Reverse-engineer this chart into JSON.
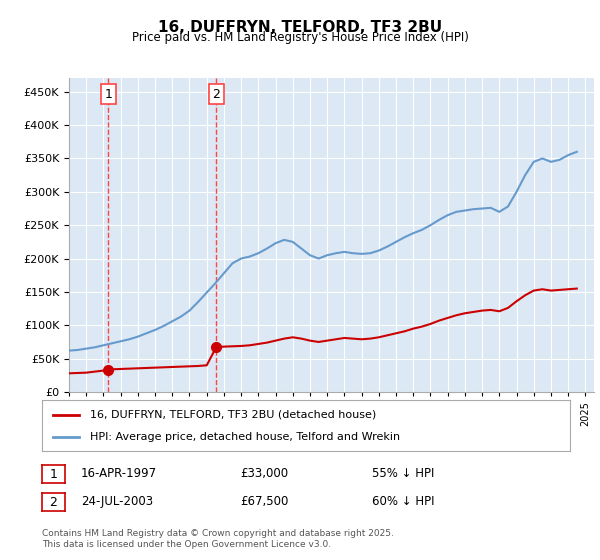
{
  "title": "16, DUFFRYN, TELFORD, TF3 2BU",
  "subtitle": "Price paid vs. HM Land Registry's House Price Index (HPI)",
  "legend_line1": "16, DUFFRYN, TELFORD, TF3 2BU (detached house)",
  "legend_line2": "HPI: Average price, detached house, Telford and Wrekin",
  "transaction1_label": "1",
  "transaction1_date": "16-APR-1997",
  "transaction1_price": "£33,000",
  "transaction1_hpi": "55% ↓ HPI",
  "transaction1_year": 1997.29,
  "transaction1_value": 33000,
  "transaction2_label": "2",
  "transaction2_date": "24-JUL-2003",
  "transaction2_price": "£67,500",
  "transaction2_hpi": "60% ↓ HPI",
  "transaction2_year": 2003.56,
  "transaction2_value": 67500,
  "footer": "Contains HM Land Registry data © Crown copyright and database right 2025.\nThis data is licensed under the Open Government Licence v3.0.",
  "hpi_color": "#6699cc",
  "price_color": "#cc0000",
  "marker_color": "#cc0000",
  "vline_color": "#ff4444",
  "background_color": "#ffffff",
  "plot_bg_color": "#dce9f5",
  "ylim": [
    0,
    470000
  ],
  "yticks": [
    0,
    50000,
    100000,
    150000,
    200000,
    250000,
    300000,
    350000,
    400000,
    450000
  ],
  "hpi_data": {
    "years": [
      1995.0,
      1995.5,
      1996.0,
      1996.5,
      1997.0,
      1997.5,
      1998.0,
      1998.5,
      1999.0,
      1999.5,
      2000.0,
      2000.5,
      2001.0,
      2001.5,
      2002.0,
      2002.5,
      2003.0,
      2003.5,
      2004.0,
      2004.5,
      2005.0,
      2005.5,
      2006.0,
      2006.5,
      2007.0,
      2007.5,
      2008.0,
      2008.5,
      2009.0,
      2009.5,
      2010.0,
      2010.5,
      2011.0,
      2011.5,
      2012.0,
      2012.5,
      2013.0,
      2013.5,
      2014.0,
      2014.5,
      2015.0,
      2015.5,
      2016.0,
      2016.5,
      2017.0,
      2017.5,
      2018.0,
      2018.5,
      2019.0,
      2019.5,
      2020.0,
      2020.5,
      2021.0,
      2021.5,
      2022.0,
      2022.5,
      2023.0,
      2023.5,
      2024.0,
      2024.5
    ],
    "values": [
      62000,
      63000,
      65000,
      67000,
      70000,
      73000,
      76000,
      79000,
      83000,
      88000,
      93000,
      99000,
      106000,
      113000,
      122000,
      135000,
      149000,
      163000,
      178000,
      193000,
      200000,
      203000,
      208000,
      215000,
      223000,
      228000,
      225000,
      215000,
      205000,
      200000,
      205000,
      208000,
      210000,
      208000,
      207000,
      208000,
      212000,
      218000,
      225000,
      232000,
      238000,
      243000,
      250000,
      258000,
      265000,
      270000,
      272000,
      274000,
      275000,
      276000,
      270000,
      278000,
      300000,
      325000,
      345000,
      350000,
      345000,
      348000,
      355000,
      360000
    ]
  },
  "price_data": {
    "years": [
      1995.0,
      1996.0,
      1997.29,
      1997.5,
      1998.0,
      1998.5,
      1999.0,
      1999.5,
      2000.0,
      2000.5,
      2001.0,
      2001.5,
      2002.0,
      2002.5,
      2003.0,
      2003.56,
      2004.0,
      2004.5,
      2005.0,
      2005.5,
      2006.0,
      2006.5,
      2007.0,
      2007.5,
      2008.0,
      2008.5,
      2009.0,
      2009.5,
      2010.0,
      2010.5,
      2011.0,
      2011.5,
      2012.0,
      2012.5,
      2013.0,
      2013.5,
      2014.0,
      2014.5,
      2015.0,
      2015.5,
      2016.0,
      2016.5,
      2017.0,
      2017.5,
      2018.0,
      2018.5,
      2019.0,
      2019.5,
      2020.0,
      2020.5,
      2021.0,
      2021.5,
      2022.0,
      2022.5,
      2023.0,
      2023.5,
      2024.0,
      2024.5
    ],
    "values": [
      28000,
      29000,
      33000,
      34000,
      34500,
      35000,
      35500,
      36000,
      36500,
      37000,
      37500,
      38000,
      38500,
      39000,
      40000,
      67500,
      68000,
      68500,
      69000,
      70000,
      72000,
      74000,
      77000,
      80000,
      82000,
      80000,
      77000,
      75000,
      77000,
      79000,
      81000,
      80000,
      79000,
      80000,
      82000,
      85000,
      88000,
      91000,
      95000,
      98000,
      102000,
      107000,
      111000,
      115000,
      118000,
      120000,
      122000,
      123000,
      121000,
      126000,
      136000,
      145000,
      152000,
      154000,
      152000,
      153000,
      154000,
      155000
    ]
  }
}
